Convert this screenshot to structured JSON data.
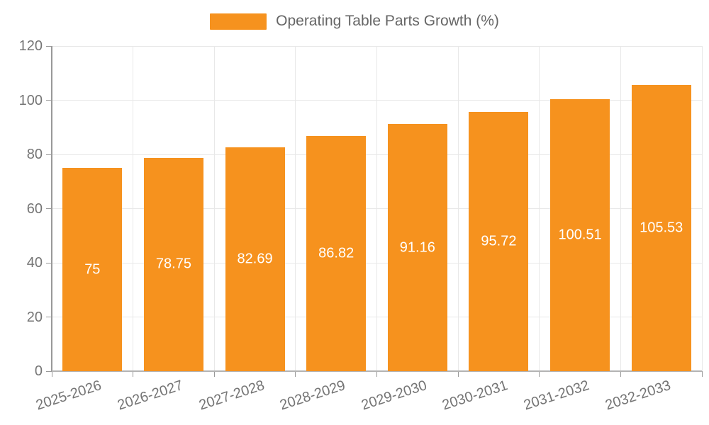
{
  "legend": {
    "label": "Operating Table Parts Growth (%)"
  },
  "chart_data": {
    "type": "bar",
    "title": "Operating Table Parts Growth (%)",
    "categories": [
      "2025-2026",
      "2026-2027",
      "2027-2028",
      "2028-2029",
      "2029-2030",
      "2030-2031",
      "2031-2032",
      "2032-2033"
    ],
    "values": [
      75,
      78.75,
      82.69,
      86.82,
      91.16,
      95.72,
      100.51,
      105.53
    ],
    "value_labels": [
      "75",
      "78.75",
      "82.69",
      "86.82",
      "91.16",
      "95.72",
      "100.51",
      "105.53"
    ],
    "xlabel": "",
    "ylabel": "",
    "ylim": [
      0,
      120
    ],
    "yticks": [
      0,
      20,
      40,
      60,
      80,
      100,
      120
    ],
    "grid": true,
    "legend_position": "top-center",
    "colors": {
      "bar": "#f6921e",
      "bar_label": "#ffffff",
      "axis_text": "#757575",
      "legend_text": "#666666",
      "grid_line": "#e8e8e8",
      "x_axis_line": "#b3b3b3",
      "y_axis_line": "#999999",
      "tick": "#999999",
      "background": "#ffffff"
    }
  }
}
